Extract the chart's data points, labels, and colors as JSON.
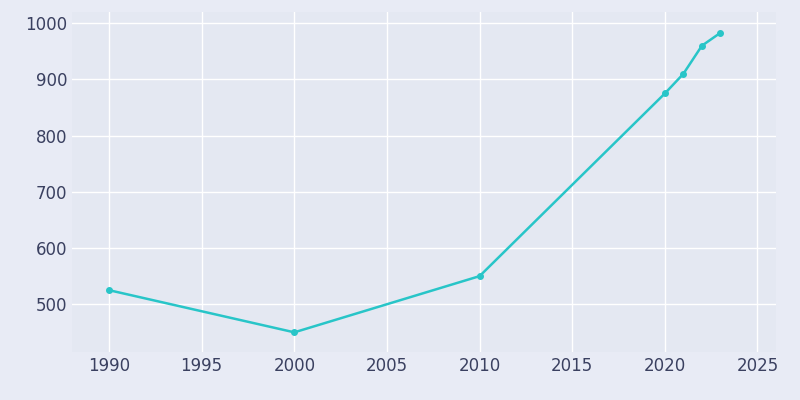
{
  "years": [
    1990,
    2000,
    2010,
    2020,
    2021,
    2022,
    2023
  ],
  "population": [
    525,
    450,
    550,
    875,
    910,
    960,
    983
  ],
  "line_color": "#28C5C8",
  "marker_color": "#28C5C8",
  "bg_color": "#E8EBF5",
  "plot_bg_color": "#E4E8F2",
  "grid_color": "#ffffff",
  "xlim": [
    1988,
    2026
  ],
  "ylim": [
    415,
    1020
  ],
  "yticks": [
    500,
    600,
    700,
    800,
    900,
    1000
  ],
  "xticks": [
    1990,
    1995,
    2000,
    2005,
    2010,
    2015,
    2020,
    2025
  ],
  "linewidth": 1.8,
  "marker_size": 4,
  "tick_fontsize": 12,
  "tick_color": "#3a4060"
}
